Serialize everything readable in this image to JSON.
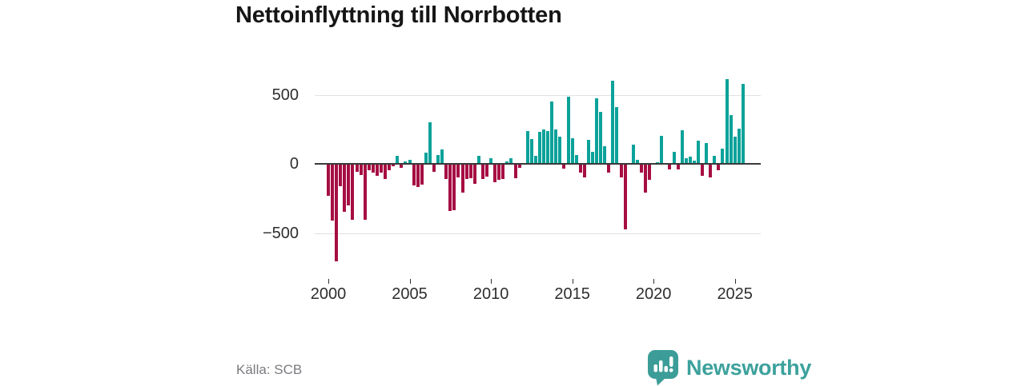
{
  "title": "Nettoinflyttning till Norrbotten",
  "source": "Källa: SCB",
  "branding": {
    "name": "Newsworthy",
    "logo_icon": "bar-chart-speech-bubble-icon",
    "brand_color": "#3da19c"
  },
  "colors": {
    "positive_bar": "#0ba29a",
    "negative_bar": "#a60e43",
    "gridline": "#e1e1e1",
    "zero_line": "#3a3a3a",
    "axis_text": "#2e2e2e",
    "title_text": "#161616",
    "source_text": "#7a7b80"
  },
  "chart_data": {
    "type": "bar",
    "title": "Nettoinflyttning till Norrbotten",
    "xlabel": "",
    "ylabel": "",
    "frequency": "quarterly",
    "period_start": "2000 Q1",
    "period_end": "2025 Q3",
    "ylim": [
      -800,
      640
    ],
    "grid": "horizontal at ±500 only",
    "legend": "none",
    "y_ticks": [
      {
        "label": "500",
        "value": 500
      },
      {
        "label": "0",
        "value": 0
      },
      {
        "label": "−500",
        "value": -500
      }
    ],
    "x_ticks": [
      {
        "label": "2000",
        "year": 2000
      },
      {
        "label": "2005",
        "year": 2005
      },
      {
        "label": "2010",
        "year": 2010
      },
      {
        "label": "2015",
        "year": 2015
      },
      {
        "label": "2020",
        "year": 2020
      },
      {
        "label": "2025",
        "year": 2025
      }
    ],
    "values_by_year": {
      "2000": [
        -225,
        -405,
        -700,
        -155
      ],
      "2001": [
        -340,
        -295,
        -400,
        -50
      ],
      "2002": [
        -75,
        -400,
        -40,
        -60
      ],
      "2003": [
        -80,
        -60,
        -105,
        -40
      ],
      "2004": [
        -10,
        55,
        -25,
        20
      ],
      "2005": [
        30,
        -150,
        -160,
        -145
      ],
      "2006": [
        80,
        300,
        -50,
        65
      ],
      "2007": [
        105,
        -105,
        -335,
        -330
      ],
      "2008": [
        -95,
        -205,
        -105,
        -100
      ],
      "2009": [
        -140,
        55,
        -105,
        -85
      ],
      "2010": [
        40,
        -125,
        -110,
        -105
      ],
      "2011": [
        20,
        40,
        -100,
        -25
      ],
      "2012": [
        0,
        235,
        180,
        60
      ],
      "2013": [
        230,
        250,
        235,
        450
      ],
      "2014": [
        250,
        195,
        -30,
        485
      ],
      "2015": [
        185,
        65,
        -60,
        -90
      ],
      "2016": [
        175,
        87,
        475,
        374
      ],
      "2017": [
        130,
        -58,
        600,
        410
      ],
      "2018": [
        -90,
        -470,
        0,
        140
      ],
      "2019": [
        30,
        -60,
        -205,
        -110
      ],
      "2020": [
        0,
        10,
        200,
        0
      ],
      "2021": [
        -35,
        85,
        -35,
        240
      ],
      "2022": [
        40,
        50,
        25,
        170
      ],
      "2023": [
        -80,
        150,
        -90,
        60
      ],
      "2024": [
        -40,
        110,
        615,
        355
      ],
      "2025": [
        195,
        255,
        580
      ]
    }
  }
}
